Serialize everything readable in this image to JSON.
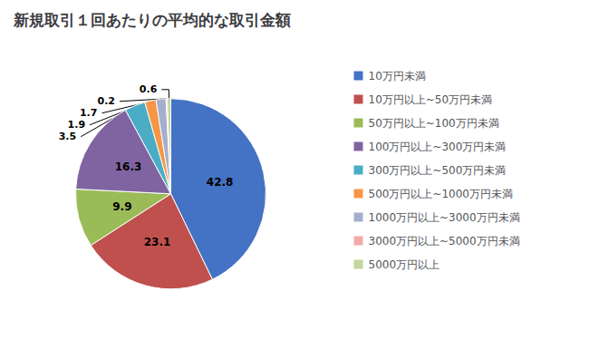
{
  "chart_data": {
    "type": "pie",
    "title": "新規取引１回あたりの平均的な取引金額",
    "categories": [
      "10万円未満",
      "10万円以上~50万円未満",
      "50万円以上~100万円未満",
      "100万円以上~300万円未満",
      "300万円以上~500万円未満",
      "500万円以上~1000万円未満",
      "1000万円以上~3000万円未満",
      "3000万円以上~5000万円未満",
      "5000万円以上"
    ],
    "values": [
      42.8,
      23.1,
      9.9,
      16.3,
      3.5,
      1.9,
      1.7,
      0.2,
      0.6
    ],
    "colors": [
      "#4472C4",
      "#C0504D",
      "#9BBB59",
      "#8064A2",
      "#4BACC6",
      "#F79646",
      "#A6AECF",
      "#F2ABAB",
      "#C3D69B"
    ],
    "data_labels": true,
    "legend": "right"
  }
}
